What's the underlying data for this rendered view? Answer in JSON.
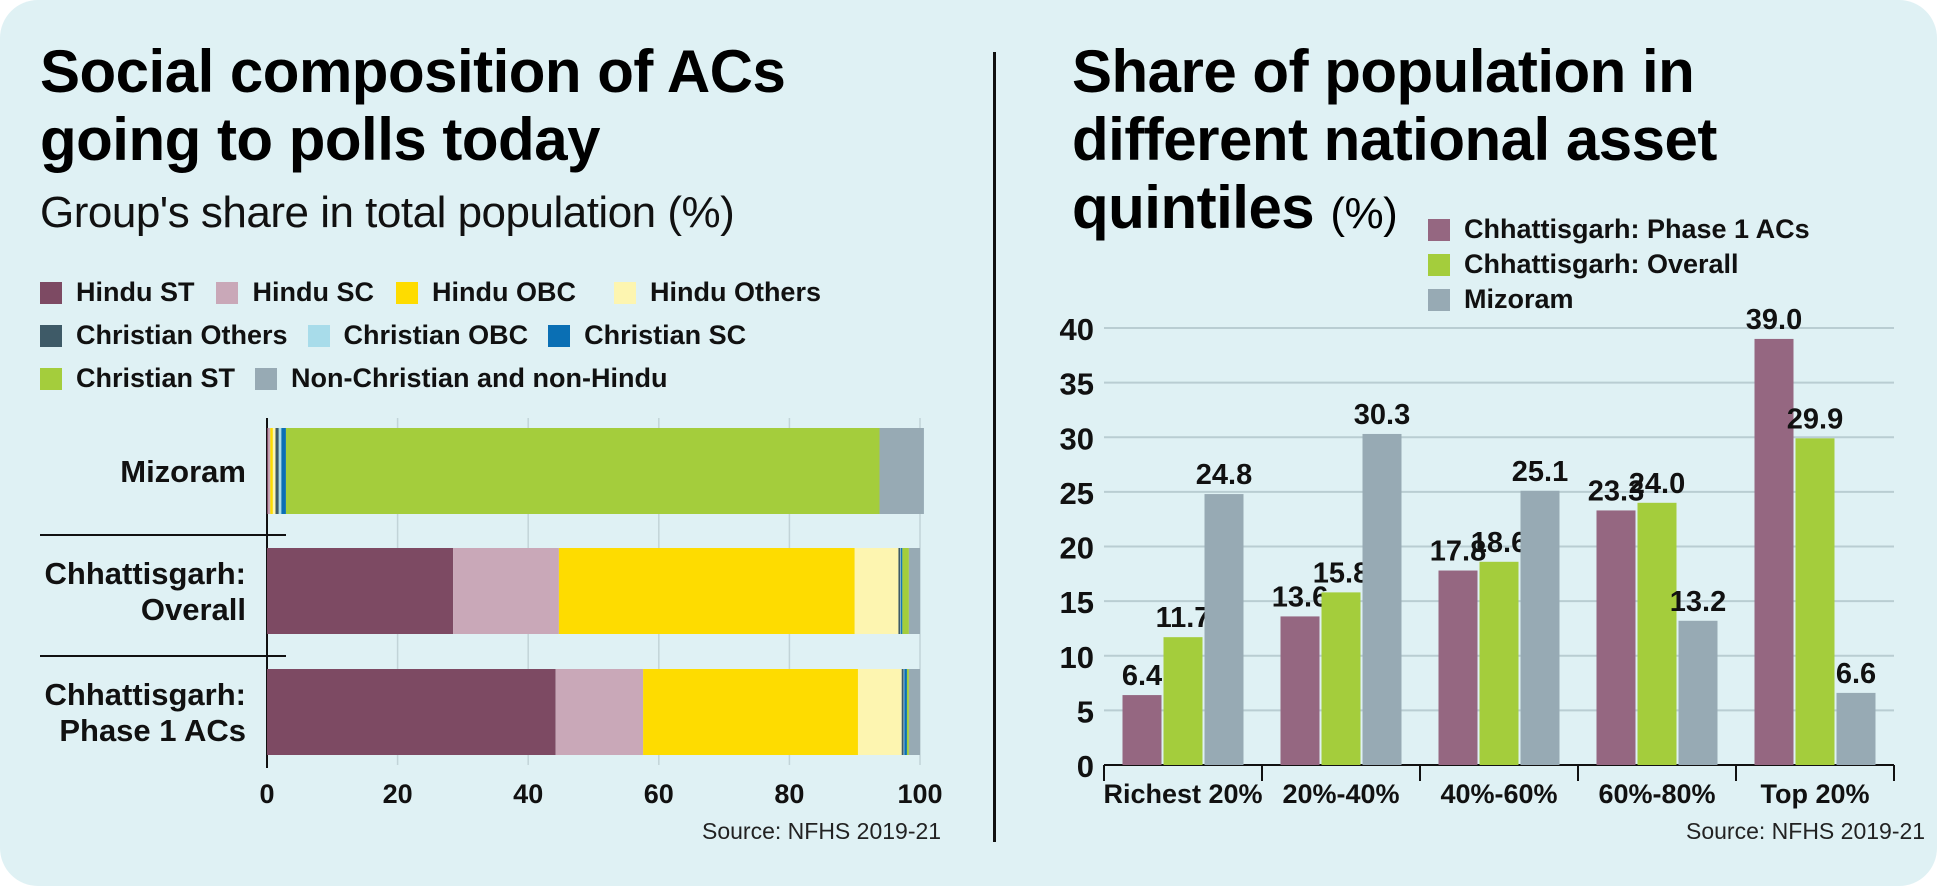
{
  "left": {
    "title_line1": "Social composition of ACs",
    "title_line2": "going to polls today",
    "subtitle": "Group's share in total population (%)",
    "source": "Source: NFHS 2019-21"
  },
  "right": {
    "title_line1": "Share of population in",
    "title_line2": "different national asset",
    "title_line3": "quintiles",
    "unit": "(%)",
    "source": "Source: NFHS 2019-21"
  },
  "chart_data": [
    {
      "type": "bar",
      "orientation": "horizontal",
      "stacked": true,
      "title": "Social composition of ACs going to polls today",
      "subtitle": "Group's share in total population (%)",
      "categories": [
        "Mizoram",
        "Chhattisgarh: Overall",
        "Chhattisgarh: Phase 1 ACs"
      ],
      "category_lines": [
        [
          "Mizoram"
        ],
        [
          "Chhattisgarh:",
          "Overall"
        ],
        [
          "Chhattisgarh:",
          "Phase 1 ACs"
        ]
      ],
      "series": [
        {
          "name": "Hindu ST",
          "color": "#7d4a63",
          "values": [
            0.2,
            28.5,
            44.2
          ]
        },
        {
          "name": "Hindu SC",
          "color": "#c9a8b8",
          "values": [
            0.3,
            16.2,
            13.4
          ]
        },
        {
          "name": "Hindu OBC",
          "color": "#fedc00",
          "values": [
            0.4,
            45.3,
            32.9
          ]
        },
        {
          "name": "Hindu Others",
          "color": "#fdf5b0",
          "values": [
            0.4,
            6.7,
            6.7
          ]
        },
        {
          "name": "Christian Others",
          "color": "#3e5a67",
          "values": [
            0.5,
            0.3,
            0.3
          ]
        },
        {
          "name": "Christian OBC",
          "color": "#a8dcea",
          "values": [
            0.4,
            0.1,
            0.1
          ]
        },
        {
          "name": "Christian SC",
          "color": "#0a6fb4",
          "values": [
            0.7,
            0.2,
            0.4
          ]
        },
        {
          "name": "Christian ST",
          "color": "#a4cd3c",
          "values": [
            90.9,
            1.0,
            0.3
          ]
        },
        {
          "name": "Non-Christian and non-Hindu",
          "color": "#97aab4",
          "values": [
            6.8,
            1.7,
            1.7
          ]
        }
      ],
      "xlim": [
        0,
        100
      ],
      "xticks": [
        0,
        20,
        40,
        60,
        80,
        100
      ],
      "legend_position": "top",
      "source": "Source: NFHS 2019-21"
    },
    {
      "type": "bar",
      "orientation": "vertical",
      "title": "Share of population in different national asset quintiles (%)",
      "categories": [
        "Richest 20%",
        "20%-40%",
        "40%-60%",
        "60%-80%",
        "Top 20%"
      ],
      "series": [
        {
          "name": "Chhattisgarh: Phase 1 ACs",
          "color": "#956781",
          "values": [
            6.4,
            13.6,
            17.8,
            23.3,
            39.0
          ],
          "labels": [
            "6.4",
            "13.6",
            "17.8",
            "23.3",
            "39.0"
          ]
        },
        {
          "name": "Chhattisgarh: Overall",
          "color": "#a4cd3c",
          "values": [
            11.7,
            15.8,
            18.6,
            24.0,
            29.9
          ],
          "labels": [
            "11.7",
            "15.8",
            "18.6",
            "24.0",
            "29.9"
          ]
        },
        {
          "name": "Mizoram",
          "color": "#97aab4",
          "values": [
            24.8,
            30.3,
            25.1,
            13.2,
            6.6
          ],
          "labels": [
            "24.8",
            "30.3",
            "25.1",
            "13.2",
            "6.6"
          ]
        }
      ],
      "ylim": [
        0,
        40
      ],
      "yticks": [
        0,
        5,
        10,
        15,
        20,
        25,
        30,
        35,
        40
      ],
      "grid": true,
      "legend_position": "top-right",
      "source": "Source: NFHS 2019-21"
    }
  ]
}
